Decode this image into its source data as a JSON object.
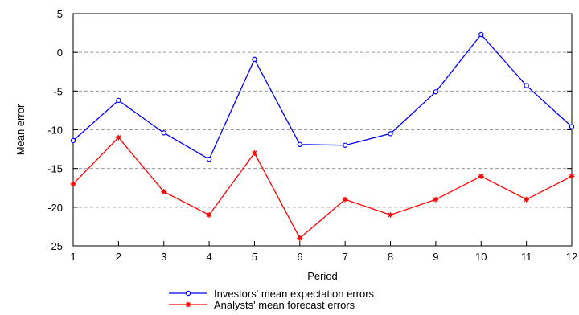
{
  "chart_data": {
    "type": "line",
    "xlabel": "Period",
    "ylabel": "Mean error",
    "x": [
      1,
      2,
      3,
      4,
      5,
      6,
      7,
      8,
      9,
      10,
      11,
      12
    ],
    "xticks": [
      "1",
      "2",
      "3",
      "4",
      "5",
      "6",
      "7",
      "8",
      "9",
      "10",
      "11",
      "12"
    ],
    "yticks": [
      5,
      0,
      -5,
      -10,
      -15,
      -20,
      -25
    ],
    "ylim": [
      -25,
      5
    ],
    "grid": true,
    "legend_position": "bottom",
    "series": [
      {
        "name": "Investors' mean expectation errors",
        "color": "#0000ff",
        "marker": "circle",
        "values": [
          -11.4,
          -6.2,
          -10.4,
          -13.8,
          -0.9,
          -11.9,
          -12.0,
          -10.5,
          -5.1,
          2.3,
          -4.3,
          -9.6
        ]
      },
      {
        "name": "Analysts' mean forecast errors",
        "color": "#ff0000",
        "marker": "star",
        "values": [
          -17.0,
          -11.0,
          -18.0,
          -21.0,
          -13.0,
          -24.0,
          -19.0,
          -21.0,
          -19.0,
          -16.0,
          -19.0,
          -16.0
        ]
      }
    ]
  }
}
